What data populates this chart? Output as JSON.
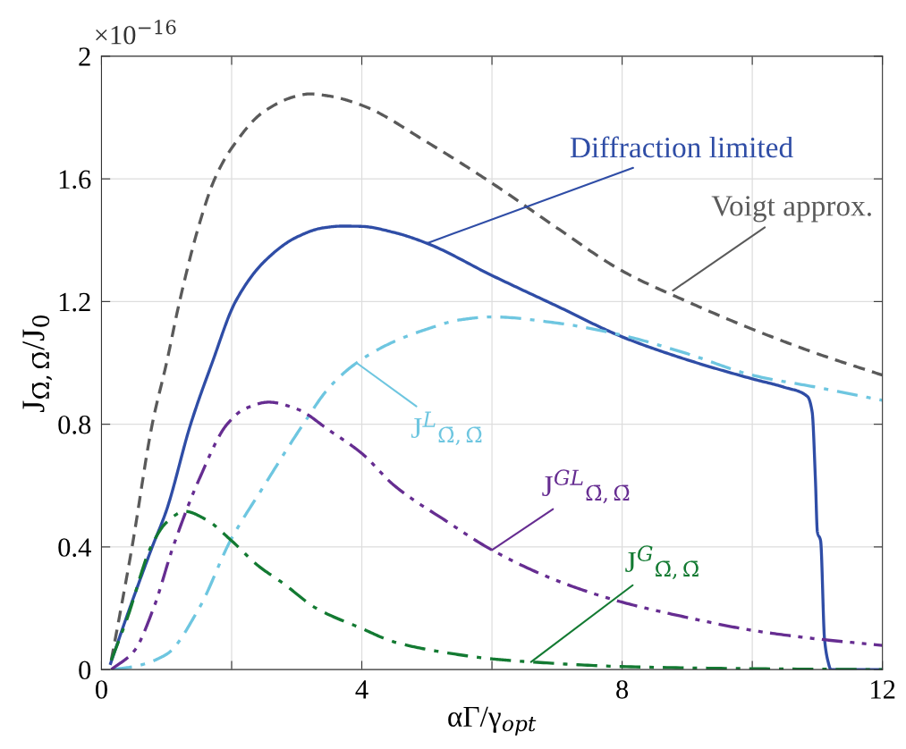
{
  "chart_data": {
    "type": "line",
    "xlabel": "αΓ/γ$_{opt}$",
    "ylabel": "J$_{Ω̄,Ω̄}$/J$_{0}$",
    "xlim": [
      0,
      12
    ],
    "ylim": [
      0,
      2
    ],
    "xticks": [
      0,
      {
        "value": 2,
        "label": null
      },
      4,
      {
        "value": 6,
        "label": null
      },
      8,
      {
        "value": 10,
        "label": null
      },
      12
    ],
    "yticks": [
      0,
      0.4,
      0.8,
      1.2,
      1.6,
      2
    ],
    "grid": true,
    "legend": false,
    "series": [
      {
        "color": "#2f4da6",
        "line_style": "solid",
        "x": [
          0.14,
          0.4,
          0.78,
          1,
          1.37,
          1.7,
          2.06,
          2.5,
          3,
          3.4,
          3.7,
          4,
          4.5,
          5,
          6,
          7,
          8,
          9,
          10,
          10.5,
          10.85,
          10.92,
          10.97,
          11,
          11.05,
          11.11,
          11.16,
          11.21,
          11.3,
          12
        ],
        "values": [
          0.02,
          0.18,
          0.4,
          0.52,
          0.8,
          1.0,
          1.2,
          1.33,
          1.41,
          1.44,
          1.446,
          1.445,
          1.425,
          1.39,
          1.285,
          1.185,
          1.085,
          1.01,
          0.948,
          0.92,
          0.89,
          0.84,
          0.62,
          0.45,
          0.42,
          0.1,
          0.03,
          0.0,
          0.0,
          0.0
        ]
      },
      {
        "color": "#5a5a5a",
        "line_style": "dashed",
        "x": [
          0.15,
          0.3,
          0.47,
          0.78,
          1,
          1.2,
          1.5,
          1.74,
          2,
          2.5,
          3,
          3.2,
          3.5,
          4,
          5,
          6,
          7,
          8,
          9,
          10,
          11,
          12
        ],
        "values": [
          0.03,
          0.2,
          0.4,
          0.8,
          1.0,
          1.2,
          1.45,
          1.6,
          1.7,
          1.82,
          1.87,
          1.877,
          1.87,
          1.84,
          1.72,
          1.586,
          1.44,
          1.3,
          1.2,
          1.11,
          1.03,
          0.96
        ]
      },
      {
        "color": "#6ec6e0",
        "line_style": "dashdot",
        "x": [
          0.15,
          0.5,
          1,
          1.5,
          1.98,
          2.5,
          3.1,
          3.5,
          3.92,
          4.5,
          5,
          5.5,
          6,
          7,
          8,
          9,
          10,
          11,
          12
        ],
        "values": [
          0,
          0.01,
          0.05,
          0.2,
          0.42,
          0.6,
          0.8,
          0.92,
          1.0,
          1.07,
          1.11,
          1.14,
          1.15,
          1.13,
          1.09,
          1.03,
          0.96,
          0.92,
          0.878
        ]
      },
      {
        "color": "#662d91",
        "line_style": "dashdotdot",
        "x": [
          0.15,
          0.5,
          0.8,
          1.1,
          1.5,
          1.93,
          2.2,
          2.57,
          3,
          3.5,
          4,
          4.5,
          5.3,
          6,
          7,
          8,
          9,
          10,
          11,
          12
        ],
        "values": [
          0,
          0.06,
          0.2,
          0.4,
          0.62,
          0.8,
          0.85,
          0.872,
          0.85,
          0.78,
          0.705,
          0.6,
          0.484,
          0.39,
          0.29,
          0.22,
          0.17,
          0.128,
          0.1,
          0.079
        ]
      },
      {
        "color": "#137a32",
        "line_style": "dashdot",
        "x": [
          0.15,
          0.4,
          0.76,
          1,
          1.28,
          1.6,
          2,
          2.4,
          2.8,
          3.3,
          4,
          4.5,
          5.3,
          6,
          6.6,
          8,
          10,
          12
        ],
        "values": [
          0.03,
          0.17,
          0.4,
          0.48,
          0.516,
          0.49,
          0.42,
          0.34,
          0.28,
          0.2,
          0.134,
          0.09,
          0.055,
          0.035,
          0.025,
          0.01,
          0.003,
          0
        ]
      }
    ],
    "annotations": [
      "×10$^{−16}$",
      {
        "text": "Diffraction limited",
        "x": 5,
        "y": 1.39
      },
      {
        "text": "Voigt approx.",
        "x": 8.78,
        "y": 1.236
      },
      {
        "text": "J$^{L}$$_{Ω̄,Ω̄}$",
        "x": 3.92,
        "y": 1.0
      },
      {
        "text": "J$^{GL}$$_{Ω̄,Ω̄}$",
        "x": 6.0,
        "y": 0.39
      },
      {
        "text": "J$^{G}$$_{Ω̄,Ω̄}$",
        "x": 6.6,
        "y": 0.025
      }
    ]
  }
}
